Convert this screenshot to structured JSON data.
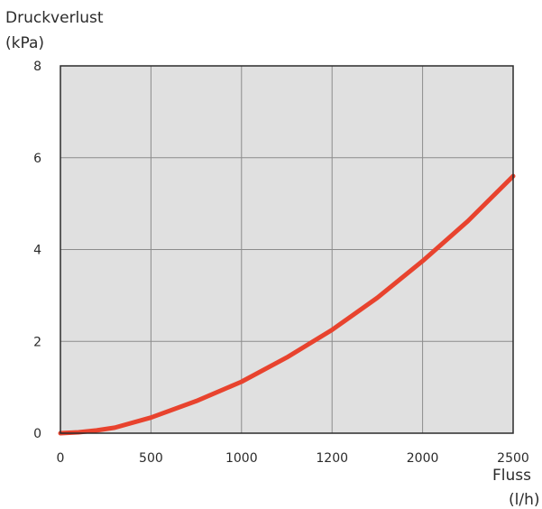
{
  "chart_data": {
    "type": "line",
    "title": "",
    "ylabel_lines": [
      "Druckverlust",
      "(kPa)"
    ],
    "xlabel_lines": [
      "Fluss",
      "(l/h)"
    ],
    "x_tick_labels": [
      "0",
      "500",
      "1000",
      "1200",
      "2000",
      "2500"
    ],
    "y_tick_labels": [
      "0",
      "2",
      "4",
      "6",
      "8"
    ],
    "xlim": [
      0,
      2500
    ],
    "ylim": [
      0,
      8
    ],
    "grid": true,
    "background_color": "#e0e0e0",
    "grid_color": "#8c8c8c",
    "line_color": "#e8432e",
    "series": [
      {
        "x": [
          0,
          100,
          200,
          300,
          500,
          750,
          1000,
          1250,
          1500,
          1750,
          2000,
          2250,
          2500
        ],
        "y": [
          0,
          0.02,
          0.06,
          0.12,
          0.34,
          0.7,
          1.12,
          1.65,
          2.25,
          2.95,
          3.75,
          4.62,
          5.6
        ]
      }
    ]
  }
}
